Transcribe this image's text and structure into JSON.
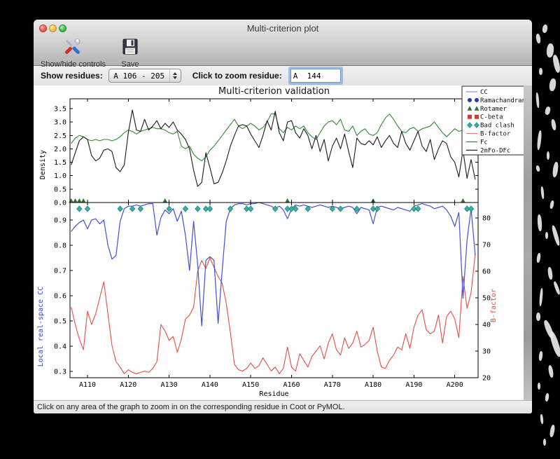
{
  "window": {
    "title": "Multi-criterion plot"
  },
  "traffic_lights": [
    {
      "name": "close",
      "color": "#ee6056"
    },
    {
      "name": "minimize",
      "color": "#f5bd4f"
    },
    {
      "name": "zoom",
      "color": "#3ec449"
    }
  ],
  "toolbar": {
    "buttons": [
      {
        "label": "Show/hide controls",
        "icon": "tools-icon"
      },
      {
        "label": "Save",
        "icon": "floppy-disk-icon"
      }
    ]
  },
  "controls": {
    "show_residues_label": "Show residues:",
    "show_residues_value": "A 106 - 205",
    "zoom_residue_label": "Click to zoom residue:",
    "zoom_residue_value": "A  144"
  },
  "status_bar": {
    "text": "Click on any area of the graph to zoom in on the corresponding residue in Coot or PyMOL."
  },
  "chart_data": {
    "type": "line",
    "title": "Multi-criterion validation",
    "xlabel": "Residue",
    "chain": "A",
    "residue_start": 106,
    "residue_end": 205,
    "xticks": [
      [
        110,
        "A110"
      ],
      [
        120,
        "A120"
      ],
      [
        130,
        "A130"
      ],
      [
        140,
        "A140"
      ],
      [
        150,
        "A150"
      ],
      [
        160,
        "A160"
      ],
      [
        170,
        "A170"
      ],
      [
        180,
        "A180"
      ],
      [
        190,
        "A190"
      ],
      [
        200,
        "A200"
      ]
    ],
    "top": {
      "ylabel": "Density",
      "ylim": [
        0.0,
        3.86
      ],
      "yticks": [
        [
          0.0,
          "0.0"
        ],
        [
          0.5,
          "0.5"
        ],
        [
          1.0,
          "1.0"
        ],
        [
          1.5,
          "1.5"
        ],
        [
          2.0,
          "2.0"
        ],
        [
          2.5,
          "2.5"
        ],
        [
          3.0,
          "3.0"
        ],
        [
          3.5,
          "3.5"
        ]
      ],
      "series": [
        {
          "name": "Fc",
          "color": "#2e8b2e",
          "values": [
            2.2,
            2.4,
            2.5,
            2.45,
            2.35,
            2.3,
            2.35,
            2.3,
            2.35,
            2.35,
            2.3,
            2.35,
            2.45,
            2.6,
            2.7,
            2.65,
            2.55,
            2.65,
            2.7,
            2.75,
            2.8,
            2.75,
            2.75,
            2.7,
            2.6,
            2.55,
            2.65,
            2.1,
            2.0,
            2.1,
            1.8,
            1.65,
            1.55,
            1.7,
            1.95,
            2.1,
            2.3,
            2.5,
            2.7,
            2.9,
            3.1,
            2.85,
            2.75,
            2.85,
            2.95,
            2.85,
            2.7,
            2.8,
            3.0,
            3.3,
            3.3,
            2.75,
            2.6,
            2.8,
            2.7,
            2.85,
            2.75,
            2.85,
            2.6,
            2.45,
            2.35,
            2.6,
            2.85,
            3.0,
            3.05,
            2.9,
            3.1,
            2.7,
            2.65,
            2.85,
            2.5,
            2.65,
            2.75,
            2.55,
            2.5,
            2.6,
            2.9,
            3.15,
            3.3,
            3.1,
            2.85,
            2.65,
            2.6,
            2.75,
            2.8,
            2.65,
            2.75,
            2.8,
            2.85,
            3.0,
            2.8,
            2.6,
            2.45,
            2.6,
            2.75,
            2.65,
            2.7,
            2.8,
            2.9,
            2.85
          ]
        },
        {
          "name": "2mFo-DFc",
          "color": "#1a1a1a",
          "values": [
            1.4,
            1.85,
            2.3,
            2.45,
            2.35,
            1.75,
            1.55,
            1.65,
            1.95,
            2.0,
            1.9,
            1.3,
            1.15,
            1.4,
            2.6,
            3.45,
            2.7,
            2.65,
            3.1,
            2.7,
            2.85,
            3.05,
            2.75,
            2.95,
            2.8,
            3.0,
            2.7,
            2.55,
            2.35,
            2.0,
            1.2,
            0.6,
            0.75,
            1.85,
            1.3,
            0.7,
            0.75,
            1.1,
            1.55,
            2.1,
            2.5,
            2.85,
            2.9,
            2.85,
            2.55,
            2.3,
            2.05,
            2.5,
            3.05,
            2.7,
            3.4,
            2.6,
            2.3,
            3.0,
            3.05,
            2.6,
            2.4,
            2.75,
            2.5,
            2.0,
            2.5,
            1.9,
            2.35,
            1.55,
            2.1,
            2.4,
            2.0,
            2.55,
            1.9,
            1.3,
            2.4,
            2.2,
            2.15,
            2.3,
            2.15,
            2.45,
            2.05,
            2.3,
            2.5,
            2.2,
            2.05,
            2.65,
            2.2,
            1.95,
            2.3,
            2.65,
            2.1,
            1.9,
            2.35,
            1.6,
            2.0,
            2.3,
            2.2,
            1.7,
            1.5,
            0.95,
            1.95,
            0.9,
            1.6,
            0.85
          ]
        }
      ]
    },
    "bottom": {
      "ylabel_left": "Local real-space CC",
      "ylabel_left_color": "#3a46cc",
      "ylim_left": [
        0.275,
        0.969
      ],
      "yticks_left": [
        [
          0.3,
          "0.3"
        ],
        [
          0.4,
          "0.4"
        ],
        [
          0.5,
          "0.5"
        ],
        [
          0.6,
          "0.6"
        ],
        [
          0.7,
          "0.7"
        ],
        [
          0.8,
          "0.8"
        ],
        [
          0.9,
          "0.9"
        ]
      ],
      "ylabel_right": "B-factor",
      "ylabel_right_color": "#df4f45",
      "ylim_right": [
        20,
        85.8
      ],
      "yticks_right": [
        [
          20,
          "20"
        ],
        [
          30,
          "30"
        ],
        [
          40,
          "40"
        ],
        [
          50,
          "50"
        ],
        [
          60,
          "60"
        ],
        [
          70,
          "70"
        ],
        [
          80,
          "80"
        ]
      ],
      "series": [
        {
          "name": "CC",
          "axis": "left",
          "color": "#4350d2",
          "values": [
            0.855,
            0.875,
            0.89,
            0.9,
            0.865,
            0.9,
            0.905,
            0.885,
            0.9,
            0.8,
            0.745,
            0.76,
            0.895,
            0.945,
            0.955,
            0.955,
            0.96,
            0.955,
            0.96,
            0.965,
            0.965,
            0.84,
            0.91,
            0.94,
            0.925,
            0.945,
            0.895,
            0.935,
            0.84,
            0.7,
            0.895,
            0.725,
            0.48,
            0.74,
            0.755,
            0.74,
            0.49,
            0.7,
            0.895,
            0.945,
            0.96,
            0.965,
            0.965,
            0.96,
            0.965,
            0.965,
            0.97,
            0.965,
            0.96,
            0.955,
            0.945,
            0.955,
            0.94,
            0.905,
            0.945,
            0.96,
            0.955,
            0.96,
            0.955,
            0.95,
            0.955,
            0.96,
            0.955,
            0.95,
            0.955,
            0.95,
            0.945,
            0.95,
            0.955,
            0.95,
            0.925,
            0.95,
            0.945,
            0.94,
            0.885,
            0.95,
            0.955,
            0.95,
            0.945,
            0.94,
            0.95,
            0.945,
            0.94,
            0.935,
            0.955,
            0.96,
            0.965,
            0.96,
            0.955,
            0.945,
            0.95,
            0.955,
            0.94,
            0.915,
            0.875,
            0.93,
            0.59,
            0.82,
            0.945,
            0.76
          ]
        },
        {
          "name": "B-factor",
          "axis": "right",
          "color": "#df4f45",
          "values": [
            46.5,
            40,
            34.5,
            30.5,
            45,
            40,
            44,
            50,
            56,
            44,
            32,
            26,
            24,
            21.5,
            23,
            22,
            21.5,
            22,
            22.5,
            22,
            23.5,
            26,
            40,
            37.5,
            34,
            35.5,
            29.5,
            34.5,
            42,
            43.5,
            46.5,
            60,
            64,
            61,
            65,
            61.5,
            58,
            55.5,
            48,
            37,
            25,
            23,
            22.5,
            23.5,
            25.5,
            23.5,
            24.5,
            27.5,
            25,
            22.5,
            24,
            21.5,
            23.5,
            31.5,
            24,
            22.5,
            29,
            26.5,
            24,
            28,
            30,
            32,
            27,
            33,
            36.5,
            30.5,
            28.5,
            35,
            31,
            33,
            37.5,
            31.5,
            32.5,
            34,
            39,
            30,
            24,
            23.5,
            26.5,
            28.5,
            31.5,
            30.5,
            36.5,
            31,
            39,
            43.5,
            45.5,
            38,
            36.5,
            37.5,
            43.5,
            33,
            43,
            45,
            42,
            35,
            58,
            46,
            52,
            66.5
          ]
        }
      ],
      "markers": {
        "rotamer": {
          "color": "#2c7a2c",
          "residues": [
            106,
            107,
            108,
            109,
            129,
            159,
            180,
            202
          ]
        },
        "bad_clash": {
          "color": "#3ab0a8",
          "edge": "#1f7f78",
          "residues": [
            108,
            110,
            118,
            121,
            123,
            130,
            134,
            137,
            139,
            140,
            145,
            149,
            150,
            156,
            159,
            160,
            161,
            164,
            170,
            172,
            176,
            180,
            181,
            190,
            191,
            203,
            204
          ]
        },
        "ramachandran": {
          "color": "#2433c9",
          "residues": []
        },
        "c_beta": {
          "color": "#cc3d2e",
          "residues": []
        }
      }
    },
    "legend": {
      "position": "upper right",
      "entries": [
        {
          "label": "CC",
          "type": "line",
          "color": "#8890e8"
        },
        {
          "label": "Ramachandran",
          "type": "circle",
          "color": "#2433c9"
        },
        {
          "label": "Rotamer",
          "type": "triangle",
          "color": "#2c7a2c"
        },
        {
          "label": "C-beta",
          "type": "square",
          "color": "#cc3d2e"
        },
        {
          "label": "Bad clash",
          "type": "diamond",
          "color": "#3ab0a8"
        },
        {
          "label": "B-factor",
          "type": "line",
          "color": "#e8766c"
        },
        {
          "label": "Fc",
          "type": "line",
          "color": "#2e8b2e"
        },
        {
          "label": "2mFo-DFc",
          "type": "line",
          "color": "#1a1a1a"
        }
      ]
    }
  }
}
